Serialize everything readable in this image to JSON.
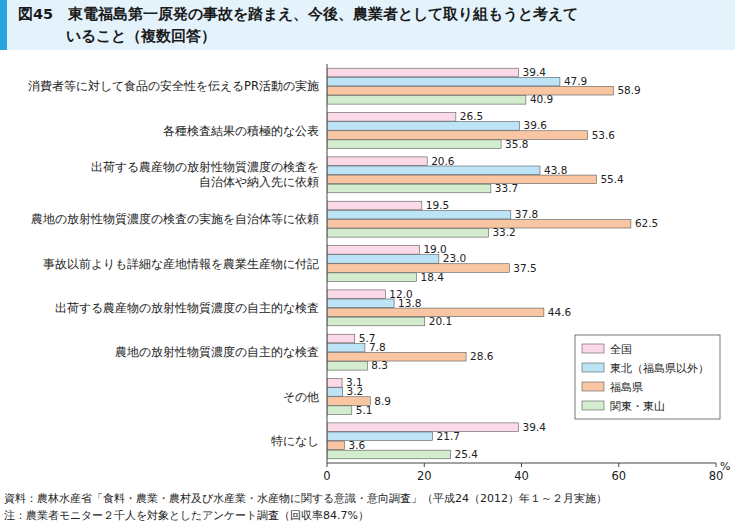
{
  "chart_data": {
    "type": "bar",
    "orientation": "horizontal",
    "title": "図45　東電福島第一原発の事故を踏まえ、今後、農業者として取り組もうと考えて\nいること（複数回答）",
    "x_label": "%",
    "categories": [
      "消費者等に対して食品の安全性を伝えるPR活動の実施",
      "各種検査結果の積極的な公表",
      "出荷する農産物の放射性物質濃度の検査を\n自治体や納入先に依頼",
      "農地の放射性物質濃度の検査の実施を自治体等に依頼",
      "事故以前よりも詳細な産地情報を農業生産物に付記",
      "出荷する農産物の放射性物質濃度の自主的な検査",
      "農地の放射性物質濃度の自主的な検査",
      "その他",
      "特になし"
    ],
    "series": [
      {
        "name": "全国",
        "color": "#fbd9e8",
        "values": [
          39.4,
          26.5,
          20.6,
          19.5,
          19.0,
          12.0,
          5.7,
          3.1,
          39.4
        ],
        "value_labels": [
          "39.4",
          "26.5",
          "20.6",
          "19.5",
          "19.0",
          "12.0",
          "5.7",
          "3.1",
          "39.4"
        ]
      },
      {
        "name": "東北（福島県以外）",
        "color": "#bde3f6",
        "values": [
          47.9,
          39.6,
          43.8,
          37.8,
          23.0,
          13.8,
          7.8,
          3.2,
          21.7
        ],
        "value_labels": [
          "47.9",
          "39.6",
          "43.8",
          "37.8",
          "23.0",
          "13.8",
          "7.8",
          "3.2",
          "21.7"
        ]
      },
      {
        "name": "福島県",
        "color": "#f8c6a3",
        "values": [
          58.9,
          53.6,
          55.4,
          62.5,
          37.5,
          44.6,
          28.6,
          8.9,
          3.6
        ],
        "value_labels": [
          "58.9",
          "53.6",
          "55.4",
          "62.5",
          "37.5",
          "44.6",
          "28.6",
          "8.9",
          "3.6"
        ]
      },
      {
        "name": "関東・東山",
        "color": "#d3ecce",
        "values": [
          40.9,
          35.8,
          33.7,
          33.2,
          18.4,
          20.1,
          8.3,
          5.1,
          25.4
        ],
        "value_labels": [
          "40.9",
          "35.8",
          "33.7",
          "33.2",
          "18.4",
          "20.1",
          "8.3",
          "5.1",
          "25.4"
        ]
      }
    ],
    "xlim": [
      0,
      80
    ],
    "xticks": [
      0,
      20,
      40,
      60,
      80
    ],
    "grid": false,
    "legend": "lower right",
    "data_labels": true,
    "annotations": [
      "資料：農林水産省「食料・農業・農村及び水産業・水産物に関する意識・意向調査」（平成24（2012）年１～２月実施）",
      "注：農業者モニター２千人を対象としたアンケート調査（回収率84.7%）"
    ]
  }
}
